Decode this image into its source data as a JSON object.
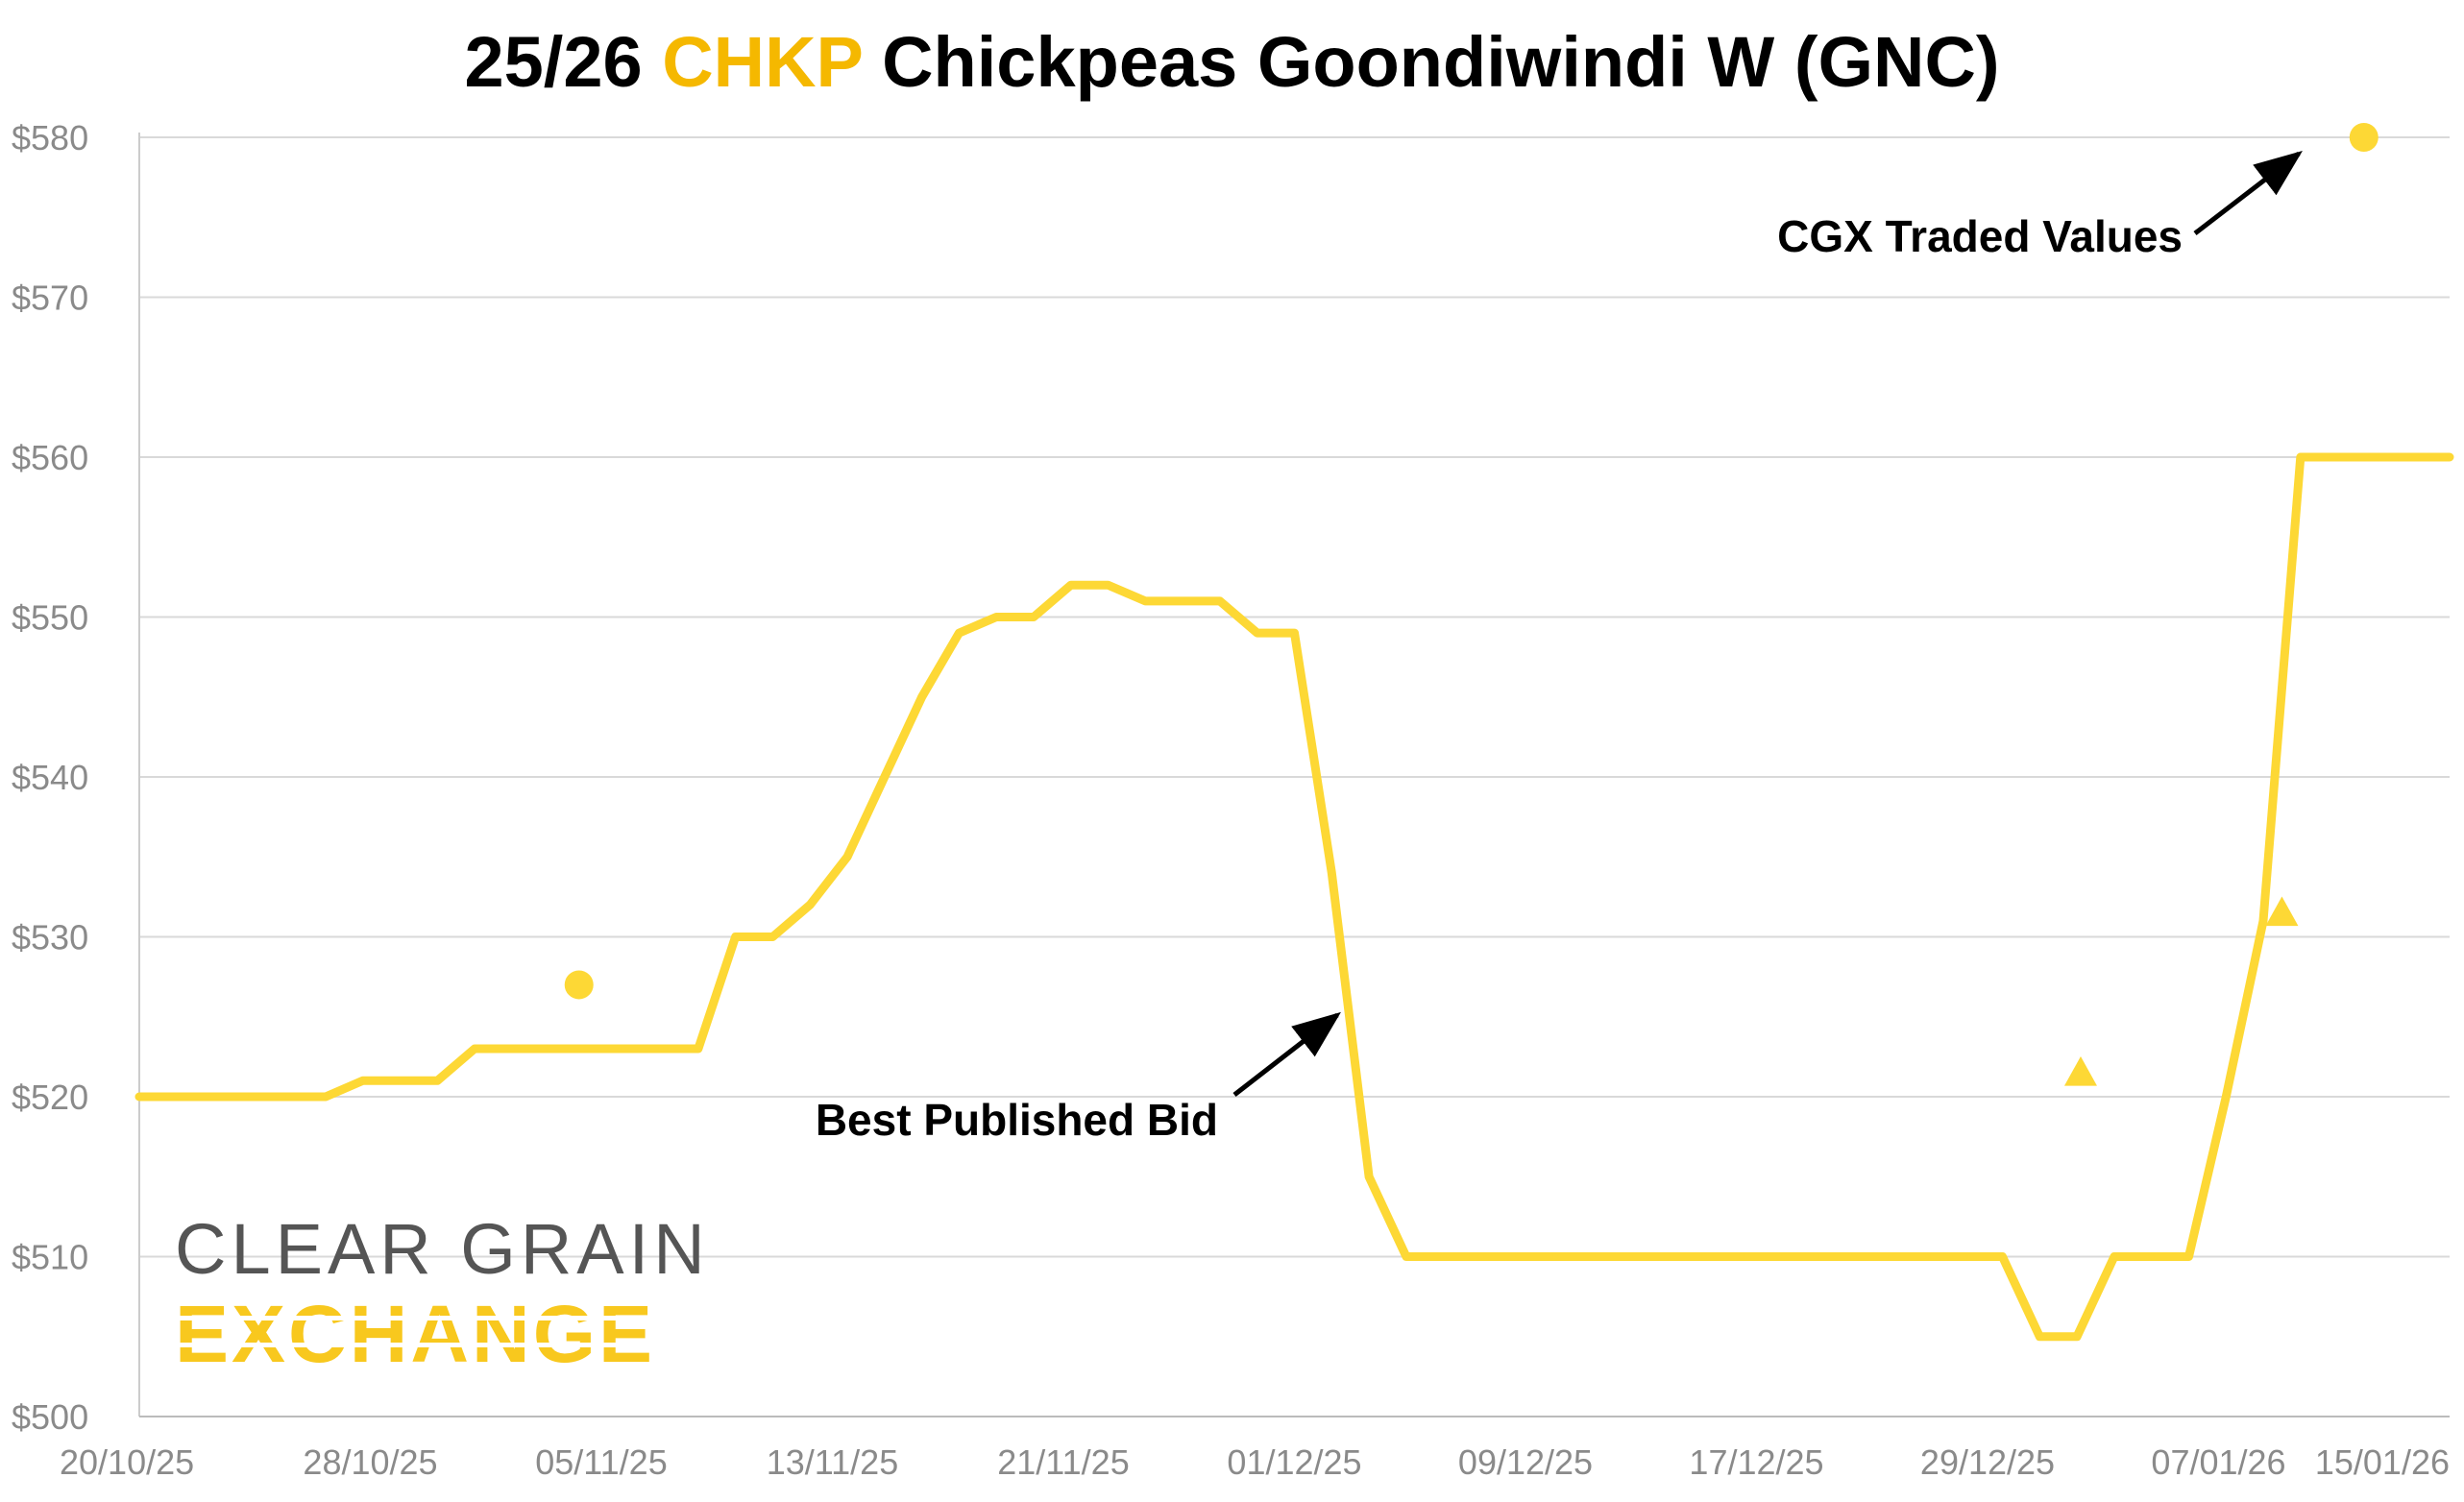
{
  "title": {
    "prefix": "25/26 ",
    "highlight": "CHKP",
    "suffix": " Chickpeas Goondiwindi W (GNC)",
    "highlight_color": "#F5B800"
  },
  "logo": {
    "line1": "CLEAR GRAIN",
    "line2": "EXCHANGE",
    "line1_color": "#555555",
    "line2_color": "#F8C81E"
  },
  "annotations": {
    "traded": "CGX Traded Values",
    "bid": "Best Published Bid"
  },
  "chart_data": {
    "type": "line",
    "title": "25/26 CHKP Chickpeas Goondiwindi W (GNC)",
    "xlabel": "",
    "ylabel": "",
    "ylim": [
      500,
      580
    ],
    "y_ticks": [
      500,
      510,
      520,
      530,
      540,
      550,
      560,
      570,
      580
    ],
    "y_tick_labels": [
      "$500",
      "$510",
      "$520",
      "$530",
      "$540",
      "$550",
      "$560",
      "$570",
      "$580"
    ],
    "x_tick_labels": [
      "20/10/25",
      "28/10/25",
      "05/11/25",
      "13/11/25",
      "21/11/25",
      "01/12/25",
      "09/12/25",
      "17/12/25",
      "29/12/25",
      "07/01/26",
      "15/01/26"
    ],
    "x_index_range": [
      0,
      62
    ],
    "grid": true,
    "legend": "none",
    "series": [
      {
        "name": "Best Published Bid",
        "color": "#FDD835",
        "x": [
          0,
          1,
          2,
          3,
          4,
          5,
          6,
          7,
          8,
          9,
          10,
          11,
          12,
          13,
          14,
          15,
          16,
          17,
          18,
          19,
          20,
          21,
          22,
          23,
          24,
          25,
          26,
          27,
          28,
          29,
          30,
          31,
          32,
          33,
          34,
          35,
          36,
          37,
          38,
          39,
          40,
          41,
          42,
          43,
          44,
          45,
          46,
          47,
          48,
          49,
          50,
          51,
          52,
          53,
          54,
          55,
          56,
          57,
          58,
          59,
          60,
          61,
          62
        ],
        "values": [
          520,
          520,
          520,
          520,
          520,
          520,
          521,
          521,
          521,
          523,
          523,
          523,
          523,
          523,
          523,
          523,
          530,
          530,
          532,
          535,
          540,
          545,
          549,
          550,
          550,
          552,
          552,
          551,
          551,
          551,
          549,
          549,
          534,
          515,
          510,
          510,
          510,
          510,
          510,
          510,
          510,
          510,
          510,
          510,
          510,
          510,
          510,
          510,
          510,
          510,
          510,
          505,
          505,
          510,
          510,
          510,
          520,
          531,
          560,
          560,
          560,
          560,
          560
        ]
      }
    ],
    "traded_points": [
      {
        "x": 11.8,
        "value": 527,
        "marker": "circle"
      },
      {
        "x": 52.1,
        "value": 521.5,
        "marker": "triangle"
      },
      {
        "x": 57.5,
        "value": 531.5,
        "marker": "triangle"
      },
      {
        "x": 59.7,
        "value": 580,
        "marker": "circle"
      }
    ]
  }
}
